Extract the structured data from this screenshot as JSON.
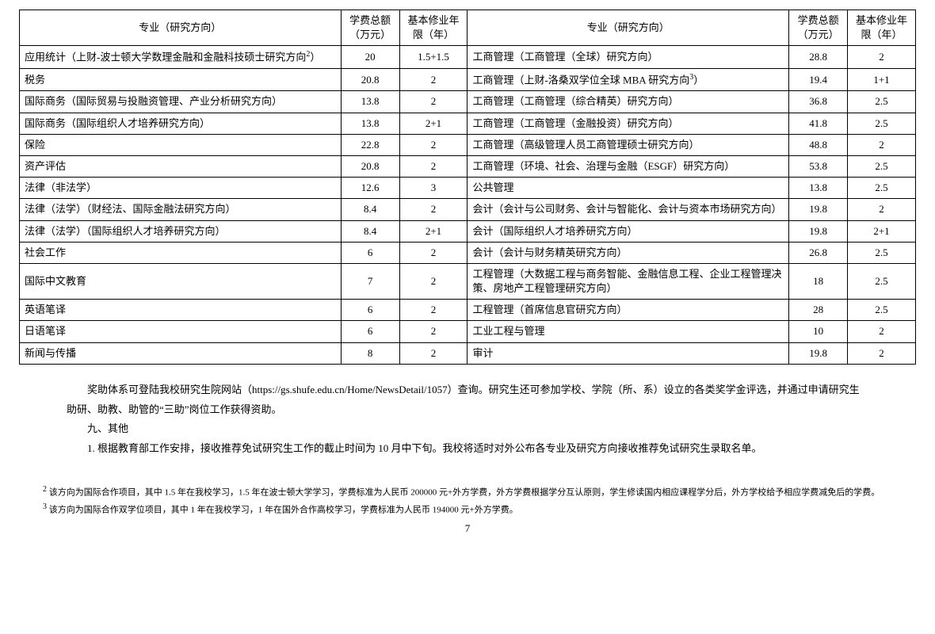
{
  "table": {
    "headers": {
      "major": "专业（研究方向）",
      "fee": "学费总额（万元）",
      "years": "基本修业年限（年）"
    },
    "rows": [
      {
        "l_major": "应用统计（上财-波士顿大学数理金融和金融科技硕士研究方向",
        "l_sup": "2",
        "l_tail": "）",
        "l_fee": "20",
        "l_years": "1.5+1.5",
        "r_major": "工商管理（工商管理（全球）研究方向）",
        "r_fee": "28.8",
        "r_years": "2"
      },
      {
        "l_major": "税务",
        "l_fee": "20.8",
        "l_years": "2",
        "r_major": "工商管理（上财-洛桑双学位全球 MBA 研究方向",
        "r_sup": "3",
        "r_tail": "）",
        "r_fee": "19.4",
        "r_years": "1+1"
      },
      {
        "l_major": "国际商务（国际贸易与投融资管理、产业分析研究方向）",
        "l_fee": "13.8",
        "l_years": "2",
        "r_major": "工商管理（工商管理（综合精英）研究方向）",
        "r_fee": "36.8",
        "r_years": "2.5"
      },
      {
        "l_major": "国际商务（国际组织人才培养研究方向）",
        "l_fee": "13.8",
        "l_years": "2+1",
        "r_major": "工商管理（工商管理（金融投资）研究方向）",
        "r_fee": "41.8",
        "r_years": "2.5"
      },
      {
        "l_major": "保险",
        "l_fee": "22.8",
        "l_years": "2",
        "r_major": "工商管理（高级管理人员工商管理硕士研究方向）",
        "r_fee": "48.8",
        "r_years": "2"
      },
      {
        "l_major": "资产评估",
        "l_fee": "20.8",
        "l_years": "2",
        "r_major": "工商管理（环境、社会、治理与金融（ESGF）研究方向）",
        "r_fee": "53.8",
        "r_years": "2.5"
      },
      {
        "l_major": "法律（非法学）",
        "l_fee": "12.6",
        "l_years": "3",
        "r_major": "公共管理",
        "r_fee": "13.8",
        "r_years": "2.5"
      },
      {
        "l_major": "法律（法学）（财经法、国际金融法研究方向）",
        "l_fee": "8.4",
        "l_years": "2",
        "r_major": "会计（会计与公司财务、会计与智能化、会计与资本市场研究方向）",
        "r_fee": "19.8",
        "r_years": "2"
      },
      {
        "l_major": "法律（法学）（国际组织人才培养研究方向）",
        "l_fee": "8.4",
        "l_years": "2+1",
        "r_major": "会计（国际组织人才培养研究方向）",
        "r_fee": "19.8",
        "r_years": "2+1"
      },
      {
        "l_major": "社会工作",
        "l_fee": "6",
        "l_years": "2",
        "r_major": "会计（会计与财务精英研究方向）",
        "r_fee": "26.8",
        "r_years": "2.5"
      },
      {
        "l_major": "国际中文教育",
        "l_fee": "7",
        "l_years": "2",
        "r_major": "工程管理（大数据工程与商务智能、金融信息工程、企业工程管理决策、房地产工程管理研究方向）",
        "r_fee": "18",
        "r_years": "2.5"
      },
      {
        "l_major": "英语笔译",
        "l_fee": "6",
        "l_years": "2",
        "r_major": "工程管理（首席信息官研究方向）",
        "r_fee": "28",
        "r_years": "2.5"
      },
      {
        "l_major": "日语笔译",
        "l_fee": "6",
        "l_years": "2",
        "r_major": "工业工程与管理",
        "r_fee": "10",
        "r_years": "2"
      },
      {
        "l_major": "新闻与传播",
        "l_fee": "8",
        "l_years": "2",
        "r_major": "审计",
        "r_fee": "19.8",
        "r_years": "2"
      }
    ]
  },
  "notes": {
    "p1": "奖助体系可登陆我校研究生院网站（https://gs.shufe.edu.cn/Home/NewsDetail/1057）查询。研究生还可参加学校、学院（所、系）设立的各类奖学金评选，并通过申请研究生助研、助教、助管的“三助”岗位工作获得资助。",
    "heading": "九、其他",
    "p2": "1. 根据教育部工作安排，接收推荐免试研究生工作的截止时间为 10 月中下旬。我校将适时对外公布各专业及研究方向接收推荐免试研究生录取名单。"
  },
  "footnotes": {
    "f2_sup": "2",
    "f2": " 该方向为国际合作项目，其中 1.5 年在我校学习，1.5 年在波士顿大学学习，学费标准为人民币 200000 元+外方学费，外方学费根据学分互认原则，学生修读国内相应课程学分后，外方学校给予相应学费减免后的学费。",
    "f3_sup": "3",
    "f3": " 该方向为国际合作双学位项目，其中 1 年在我校学习，1 年在国外合作高校学习，学费标准为人民币 194000 元+外方学费。"
  },
  "pagenum": "7"
}
